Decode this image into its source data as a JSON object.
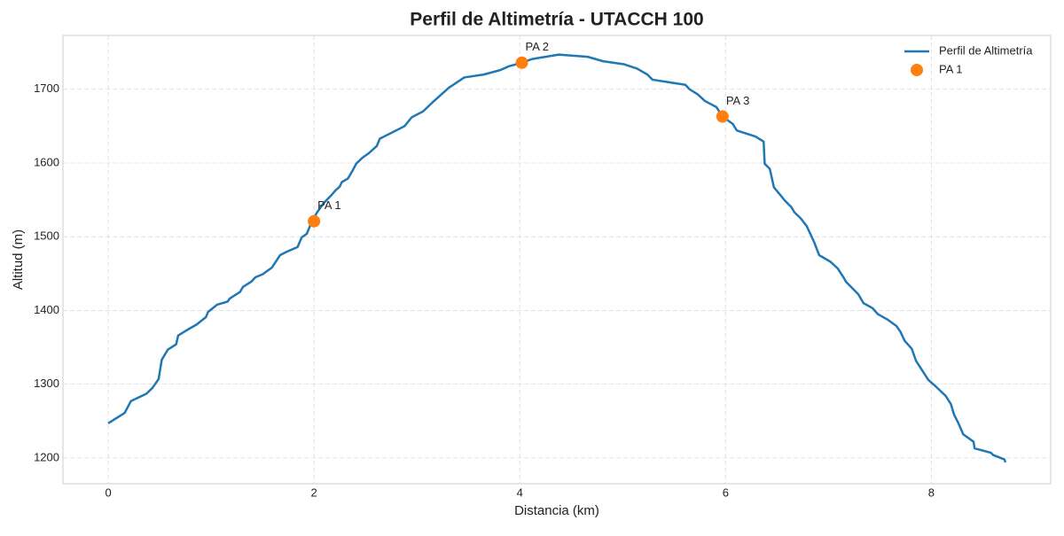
{
  "chart_data": {
    "type": "line",
    "title": "Perfil de Altimetría - UTACCH 100",
    "xlabel": "Distancia (km)",
    "ylabel": "Altitud (m)",
    "xlim": [
      -0.44,
      9.16
    ],
    "ylim": [
      1165,
      1773
    ],
    "xticks": [
      0,
      2,
      4,
      6,
      8
    ],
    "yticks": [
      1200,
      1300,
      1400,
      1500,
      1600,
      1700
    ],
    "grid": true,
    "legend": "upper right",
    "series": [
      {
        "name": "Perfil de Altimetría",
        "color": "#1f77b4",
        "type": "line",
        "x": [
          0,
          0.16,
          0.22,
          0.37,
          0.43,
          0.49,
          0.52,
          0.58,
          0.66,
          0.68,
          0.76,
          0.86,
          0.95,
          0.97,
          1.06,
          1.16,
          1.18,
          1.28,
          1.31,
          1.39,
          1.43,
          1.5,
          1.59,
          1.67,
          1.74,
          1.84,
          1.88,
          1.93,
          1.98,
          2.03,
          2.09,
          2.16,
          2.21,
          2.25,
          2.27,
          2.33,
          2.38,
          2.41,
          2.47,
          2.53,
          2.61,
          2.64,
          2.74,
          2.88,
          2.95,
          3.06,
          3.15,
          3.23,
          3.31,
          3.46,
          3.65,
          3.81,
          3.89,
          4.02,
          4.12,
          4.38,
          4.66,
          4.81,
          5.01,
          5.14,
          5.24,
          5.29,
          5.61,
          5.65,
          5.73,
          5.8,
          5.91,
          5.97,
          6.07,
          6.11,
          6.29,
          6.37,
          6.38,
          6.43,
          6.47,
          6.53,
          6.57,
          6.64,
          6.67,
          6.73,
          6.79,
          6.86,
          6.91,
          7.02,
          7.09,
          7.15,
          7.17,
          7.29,
          7.34,
          7.43,
          7.48,
          7.57,
          7.66,
          7.7,
          7.74,
          7.81,
          7.85,
          7.97,
          8.05,
          8.14,
          8.19,
          8.22,
          8.26,
          8.31,
          8.41,
          8.42,
          8.58,
          8.6,
          8.71,
          8.72
        ],
        "values": [
          1247,
          1261,
          1277,
          1287,
          1295,
          1307,
          1333,
          1347,
          1354,
          1366,
          1373,
          1381,
          1391,
          1398,
          1408,
          1412,
          1416,
          1425,
          1432,
          1439,
          1445,
          1449,
          1458,
          1475,
          1480,
          1486,
          1499,
          1504,
          1521,
          1533,
          1545,
          1555,
          1563,
          1568,
          1574,
          1579,
          1591,
          1599,
          1607,
          1613,
          1623,
          1633,
          1640,
          1650,
          1662,
          1670,
          1682,
          1692,
          1702,
          1716,
          1720,
          1726,
          1731,
          1736,
          1741,
          1747,
          1744,
          1738,
          1734,
          1728,
          1720,
          1713,
          1706,
          1700,
          1693,
          1684,
          1676,
          1663,
          1653,
          1644,
          1636,
          1629,
          1599,
          1592,
          1567,
          1557,
          1550,
          1540,
          1533,
          1525,
          1514,
          1493,
          1475,
          1466,
          1457,
          1444,
          1439,
          1422,
          1410,
          1403,
          1395,
          1388,
          1379,
          1371,
          1359,
          1348,
          1332,
          1306,
          1296,
          1284,
          1273,
          1259,
          1248,
          1232,
          1222,
          1213,
          1207,
          1204,
          1198,
          1194
        ]
      },
      {
        "name": "PA 1",
        "color": "#ff7f0e",
        "type": "scatter",
        "x": [
          2.0,
          4.02,
          5.97
        ],
        "values": [
          1521,
          1736,
          1663
        ],
        "point_labels": [
          "PA 1",
          "PA 2",
          "PA 3"
        ]
      }
    ]
  }
}
